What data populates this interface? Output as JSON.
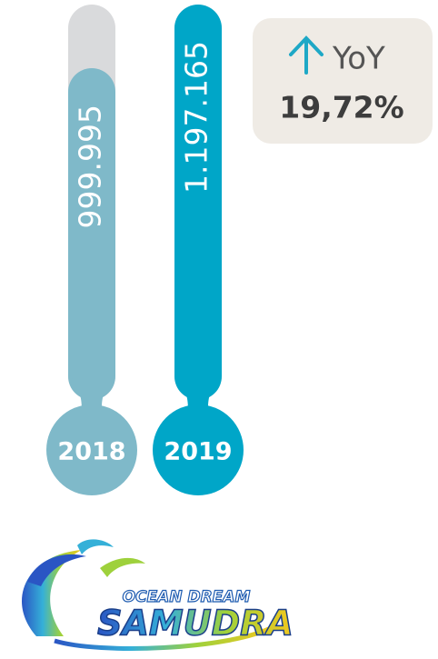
{
  "chart_data": {
    "type": "thermometer",
    "categories": [
      "2018",
      "2019"
    ],
    "values": [
      999995,
      1197165
    ],
    "value_labels": [
      "999.995",
      "1.197.165"
    ],
    "colors": [
      "#7fb9c9",
      "#00a6c8"
    ],
    "track_color": "#d9dadc",
    "ylim": [
      0,
      1197165
    ],
    "annotations": [
      "YoY",
      "19,72%"
    ]
  },
  "logo": {
    "top": "OCEAN DREAM",
    "main": "SAMUDRA"
  }
}
